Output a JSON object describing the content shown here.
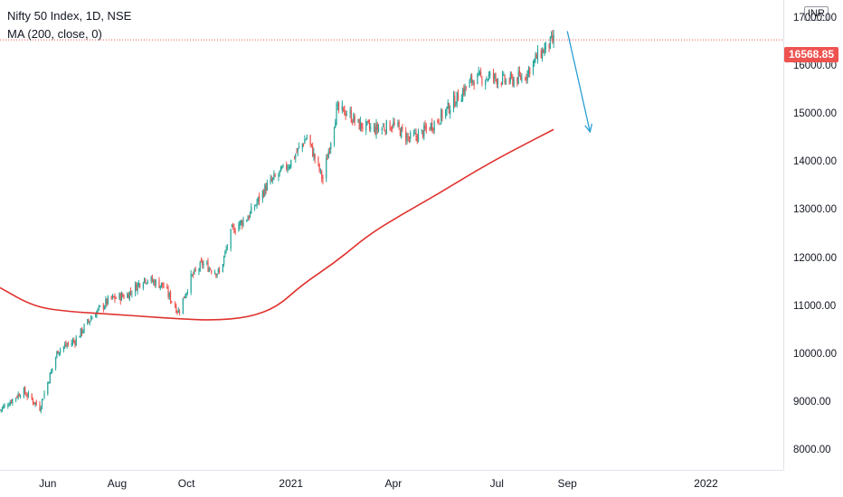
{
  "legend": {
    "symbol_line": "Nifty 50 Index, 1D, NSE",
    "indicator_line": "MA (200, close, 0)"
  },
  "currency": "INR",
  "last_price": "16568.85",
  "colors": {
    "up": "#26a69a",
    "down": "#ef5350",
    "ma": "#e0322e",
    "arrow": "#2a9fd6",
    "price_line": "#ef5350",
    "price_tag": "#ef5350"
  },
  "chart_data": {
    "type": "candlestick",
    "title": "Nifty 50 Index, 1D, NSE",
    "indicator": "MA (200, close, 0)",
    "y_axis": {
      "position": "right",
      "min": 7600,
      "max": 17400,
      "ticks": [
        "8000.00",
        "9000.00",
        "10000.00",
        "11000.00",
        "12000.00",
        "13000.00",
        "14000.00",
        "15000.00",
        "16000.00",
        "17000.00"
      ],
      "tick_values": [
        8000,
        9000,
        10000,
        11000,
        12000,
        13000,
        14000,
        15000,
        16000,
        17000
      ]
    },
    "x_axis": {
      "start": "2020-04-20",
      "end": "2022-03-10",
      "ticks": [
        "Jun",
        "Aug",
        "Oct",
        "2021",
        "Apr",
        "Jul",
        "Sep",
        "2022"
      ],
      "tick_dates": [
        "2020-06-01",
        "2020-08-01",
        "2020-10-01",
        "2021-01-01",
        "2021-04-01",
        "2021-07-01",
        "2021-09-01",
        "2022-01-01"
      ]
    },
    "close_path": [
      [
        "2020-04-20",
        8850
      ],
      [
        "2020-05-10",
        9250
      ],
      [
        "2020-05-25",
        8900
      ],
      [
        "2020-06-10",
        10100
      ],
      [
        "2020-06-25",
        10300
      ],
      [
        "2020-07-10",
        10800
      ],
      [
        "2020-07-25",
        11150
      ],
      [
        "2020-08-10",
        11250
      ],
      [
        "2020-08-25",
        11600
      ],
      [
        "2020-09-10",
        11450
      ],
      [
        "2020-09-24",
        10900
      ],
      [
        "2020-10-05",
        11600
      ],
      [
        "2020-10-15",
        11900
      ],
      [
        "2020-10-30",
        11700
      ],
      [
        "2020-11-10",
        12600
      ],
      [
        "2020-11-25",
        12900
      ],
      [
        "2020-12-10",
        13500
      ],
      [
        "2020-12-31",
        14000
      ],
      [
        "2021-01-15",
        14550
      ],
      [
        "2021-01-29",
        13650
      ],
      [
        "2021-02-10",
        15100
      ],
      [
        "2021-02-20",
        15050
      ],
      [
        "2021-03-01",
        14800
      ],
      [
        "2021-03-15",
        14700
      ],
      [
        "2021-04-01",
        14800
      ],
      [
        "2021-04-15",
        14500
      ],
      [
        "2021-04-25",
        14600
      ],
      [
        "2021-05-10",
        14900
      ],
      [
        "2021-05-25",
        15300
      ],
      [
        "2021-06-10",
        15750
      ],
      [
        "2021-06-25",
        15800
      ],
      [
        "2021-07-10",
        15700
      ],
      [
        "2021-07-25",
        15800
      ],
      [
        "2021-08-05",
        16200
      ],
      [
        "2021-08-15",
        16450
      ],
      [
        "2021-08-20",
        16568.85
      ]
    ],
    "moving_average": [
      [
        "2020-04-20",
        11400
      ],
      [
        "2020-05-20",
        11000
      ],
      [
        "2020-06-20",
        10900
      ],
      [
        "2020-07-25",
        10850
      ],
      [
        "2020-08-25",
        10800
      ],
      [
        "2020-09-25",
        10750
      ],
      [
        "2020-10-25",
        10720
      ],
      [
        "2020-11-25",
        10780
      ],
      [
        "2020-12-20",
        11000
      ],
      [
        "2021-01-10",
        11450
      ],
      [
        "2021-02-10",
        11950
      ],
      [
        "2021-03-10",
        12500
      ],
      [
        "2021-04-10",
        12950
      ],
      [
        "2021-05-10",
        13350
      ],
      [
        "2021-06-10",
        13800
      ],
      [
        "2021-07-10",
        14200
      ],
      [
        "2021-08-20",
        14700
      ]
    ],
    "forecast_arrow": {
      "from": [
        "2021-09-01",
        16750
      ],
      "to": [
        "2021-09-21",
        14650
      ]
    },
    "last_price": 16568.85
  }
}
